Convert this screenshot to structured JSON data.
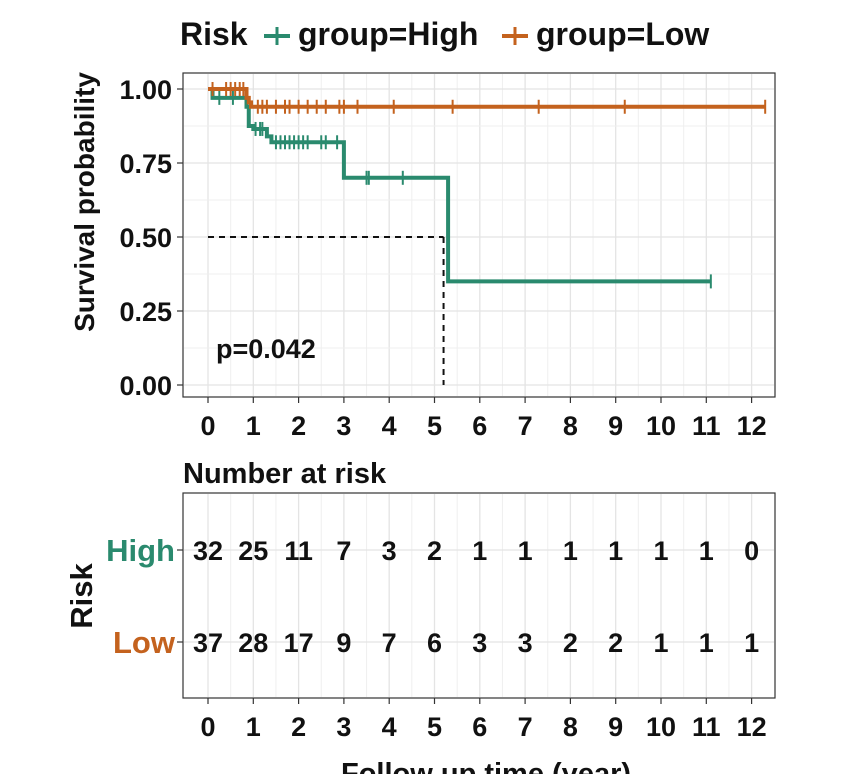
{
  "legend": {
    "title": "Risk",
    "items": [
      {
        "label": "group=High",
        "color": "#2a8a6e"
      },
      {
        "label": "group=Low",
        "color": "#c4621e"
      }
    ]
  },
  "chart_data": [
    {
      "type": "line",
      "title": "",
      "xlabel": "",
      "ylabel": "Survival probability",
      "xlim": [
        -0.5,
        12.8
      ],
      "ylim": [
        0,
        1
      ],
      "x_ticks": [
        "0",
        "1",
        "2",
        "3",
        "4",
        "5",
        "6",
        "7",
        "8",
        "9",
        "10",
        "11",
        "12"
      ],
      "y_ticks": [
        "0.00",
        "0.25",
        "0.50",
        "0.75",
        "1.00"
      ],
      "grid": true,
      "legend_position": "top",
      "annotation": "p=0.042",
      "median_survival_year": 5.2,
      "series": [
        {
          "name": "group=High",
          "color": "#2a8a6e",
          "steps": [
            [
              0,
              1.0
            ],
            [
              0.1,
              0.97
            ],
            [
              0.85,
              0.94
            ],
            [
              0.9,
              0.875
            ],
            [
              1.0,
              0.865
            ],
            [
              1.3,
              0.84
            ],
            [
              1.4,
              0.82
            ],
            [
              2.95,
              0.82
            ],
            [
              3.0,
              0.7
            ],
            [
              5.25,
              0.7
            ],
            [
              5.3,
              0.35
            ],
            [
              11.1,
              0.35
            ]
          ],
          "censor_x": [
            0.25,
            0.55,
            1.05,
            1.15,
            1.2,
            1.5,
            1.6,
            1.7,
            1.8,
            1.9,
            2.0,
            2.1,
            2.2,
            2.5,
            2.6,
            2.85,
            3.5,
            3.55,
            4.3,
            11.1
          ]
        },
        {
          "name": "group=Low",
          "color": "#c4621e",
          "steps": [
            [
              0,
              1.0
            ],
            [
              0.8,
              1.0
            ],
            [
              0.85,
              0.97
            ],
            [
              0.9,
              0.955
            ],
            [
              0.95,
              0.94
            ],
            [
              12.3,
              0.94
            ]
          ],
          "censor_x": [
            0.1,
            0.4,
            0.5,
            0.6,
            0.7,
            0.78,
            1.1,
            1.2,
            1.3,
            1.5,
            1.7,
            1.8,
            2.0,
            2.2,
            2.4,
            2.6,
            2.9,
            3.0,
            3.3,
            4.1,
            5.4,
            7.3,
            9.2,
            12.3
          ]
        }
      ]
    },
    {
      "type": "table",
      "title": "Number at risk",
      "ylabel": "Risk",
      "xlabel": "Follow up time (year)",
      "columns": [
        "0",
        "1",
        "2",
        "3",
        "4",
        "5",
        "6",
        "7",
        "8",
        "9",
        "10",
        "11",
        "12"
      ],
      "rows": [
        {
          "name": "High",
          "color": "#2a8a6e",
          "values": [
            "32",
            "25",
            "11",
            "7",
            "3",
            "2",
            "1",
            "1",
            "1",
            "1",
            "1",
            "1",
            "0"
          ]
        },
        {
          "name": "Low",
          "color": "#c4621e",
          "values": [
            "37",
            "28",
            "17",
            "9",
            "7",
            "6",
            "3",
            "3",
            "2",
            "2",
            "1",
            "1",
            "1"
          ]
        }
      ]
    }
  ]
}
